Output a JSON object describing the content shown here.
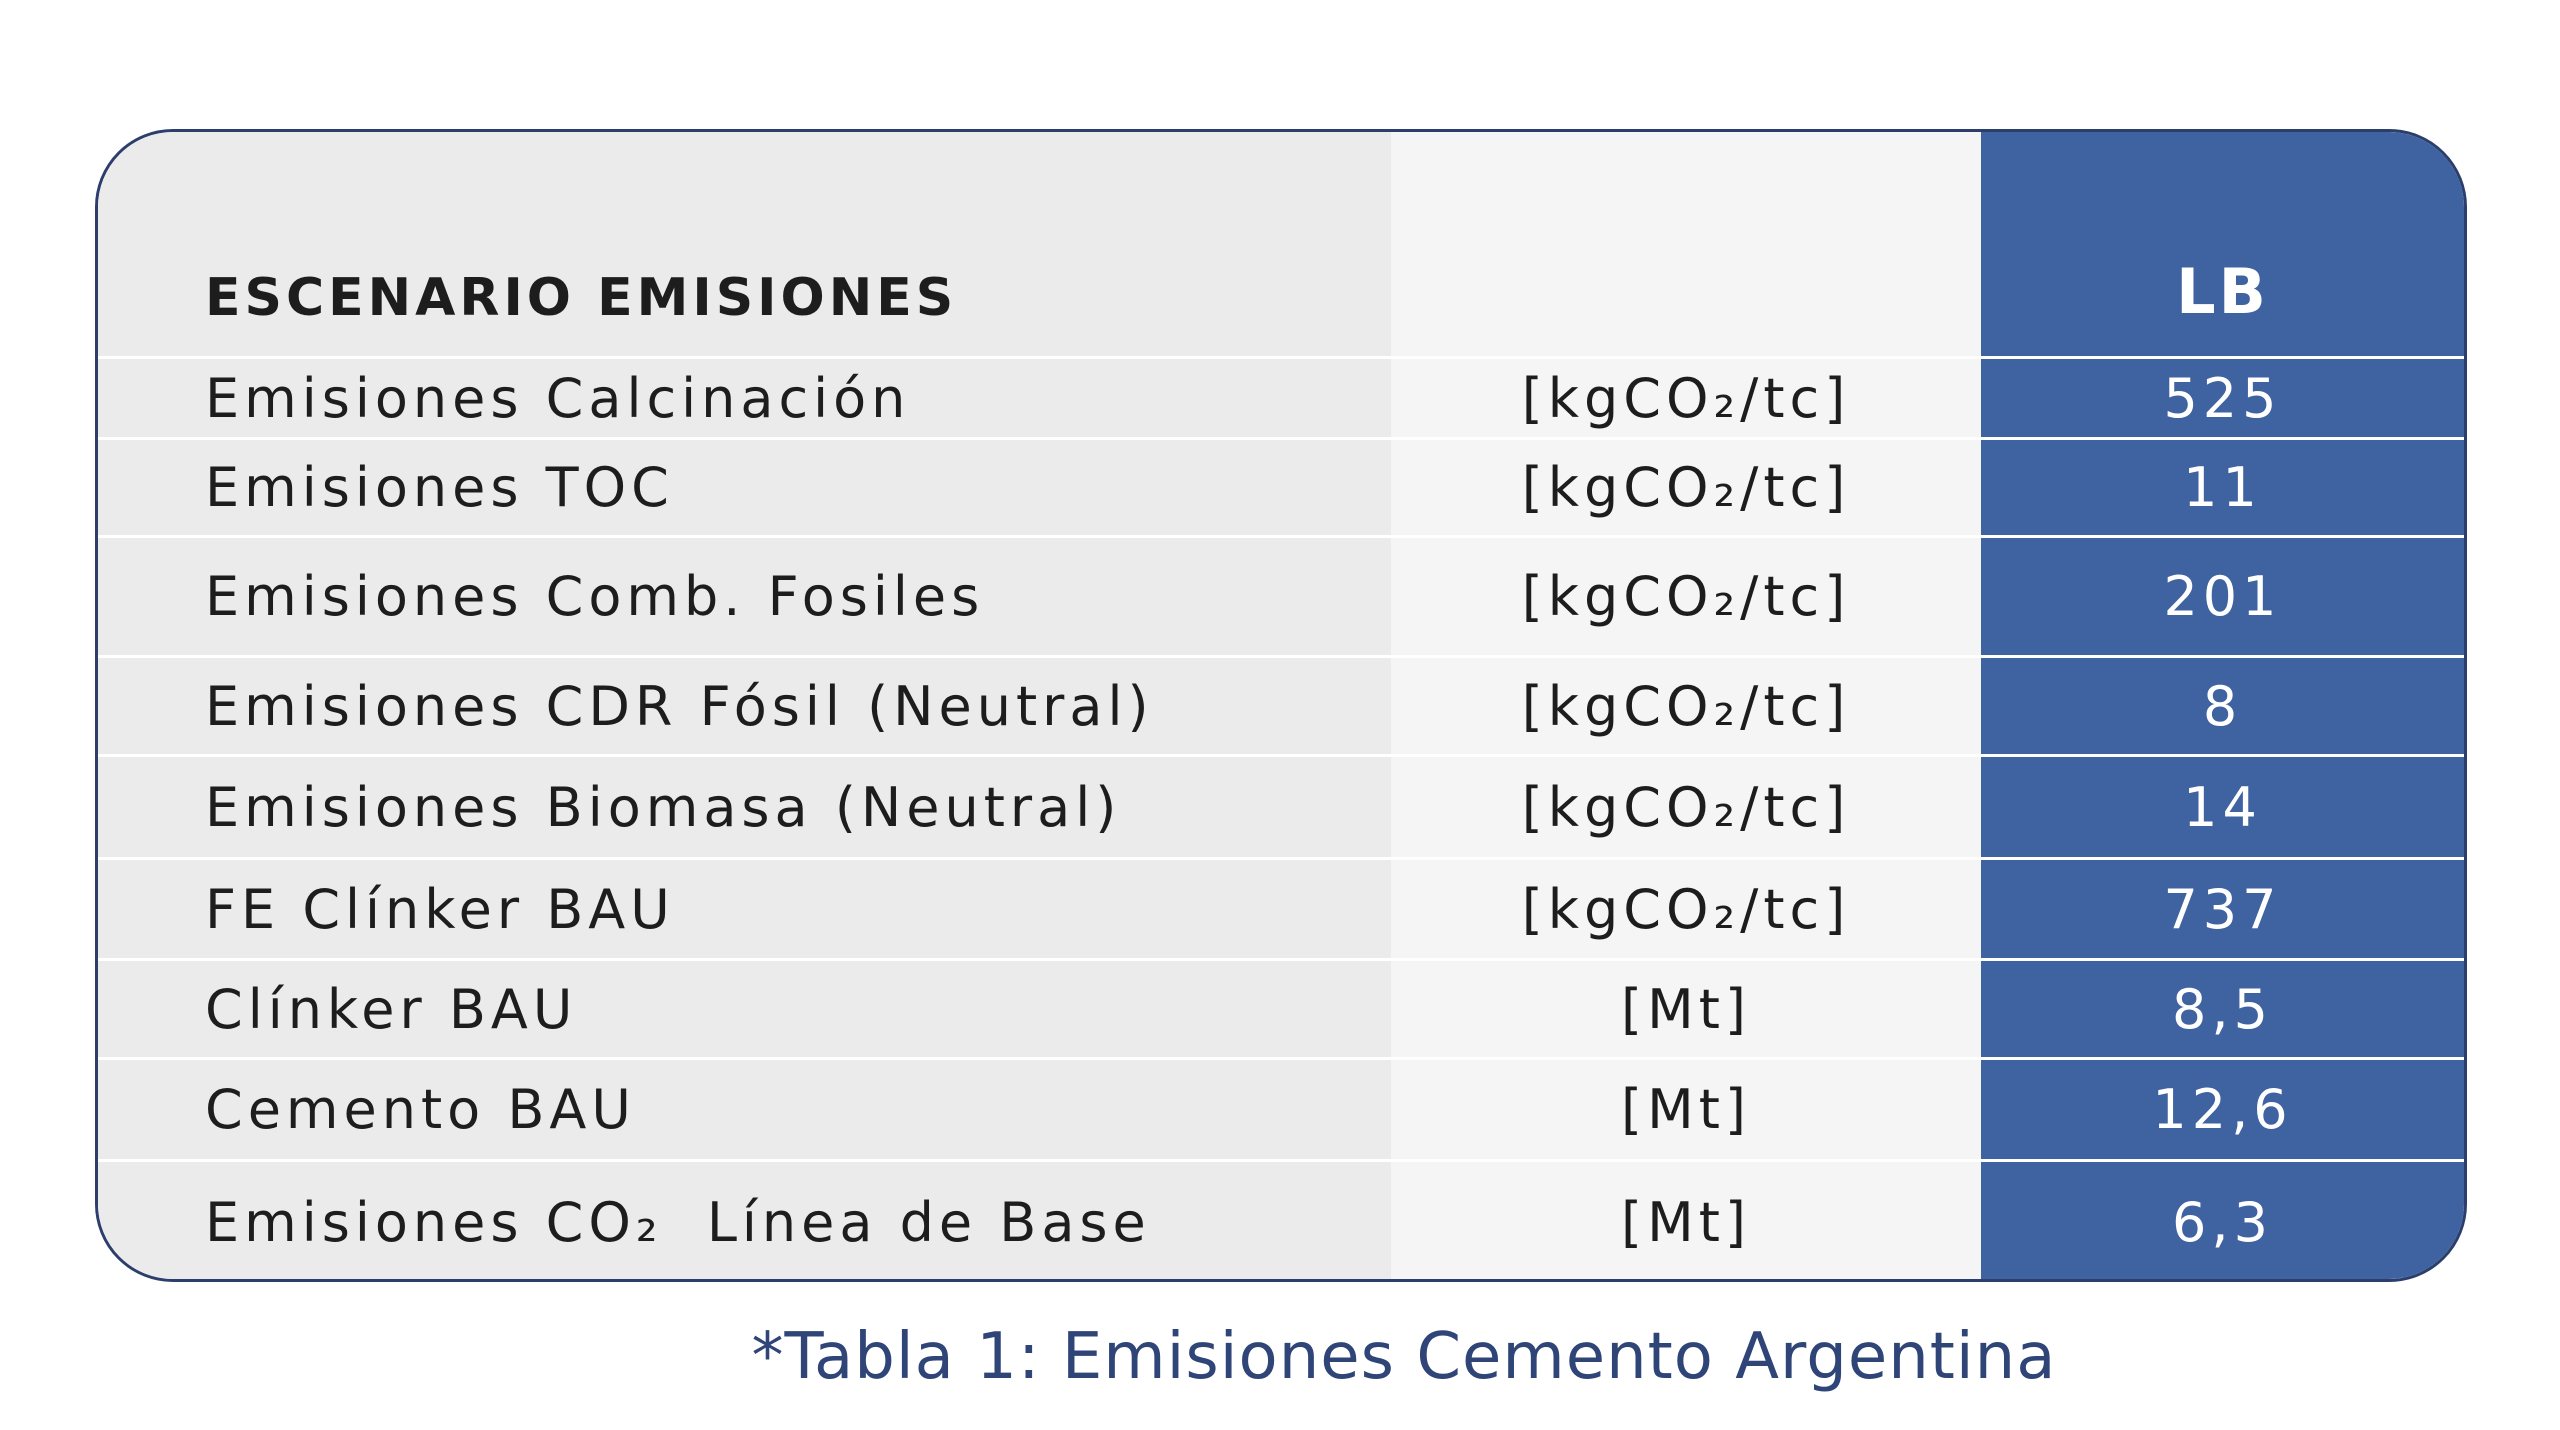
{
  "header": {
    "title": "ESCENARIO EMISIONES",
    "column": "LB"
  },
  "table": {
    "rows": [
      [
        "Emisiones Calcinación",
        "[kgCO₂/tc]",
        "525"
      ],
      [
        "Emisiones TOC",
        "[kgCO₂/tc]",
        "11"
      ],
      [
        "Emisiones Comb. Fosiles",
        "[kgCO₂/tc]",
        "201"
      ],
      [
        "Emisiones CDR Fósil (Neutral)",
        "[kgCO₂/tc]",
        "8"
      ],
      [
        "Emisiones Biomasa (Neutral)",
        "[kgCO₂/tc]",
        "14"
      ],
      [
        "FE Clínker BAU",
        "[kgCO₂/tc]",
        "737"
      ],
      [
        "Clínker BAU",
        "[Mt]",
        "8,5"
      ],
      [
        "Cemento BAU",
        "[Mt]",
        "12,6"
      ],
      [
        "Emisiones CO₂  Línea de Base",
        "[Mt]",
        "6,3"
      ]
    ]
  },
  "caption": "*Tabla 1: Emisiones Cemento Argentina"
}
